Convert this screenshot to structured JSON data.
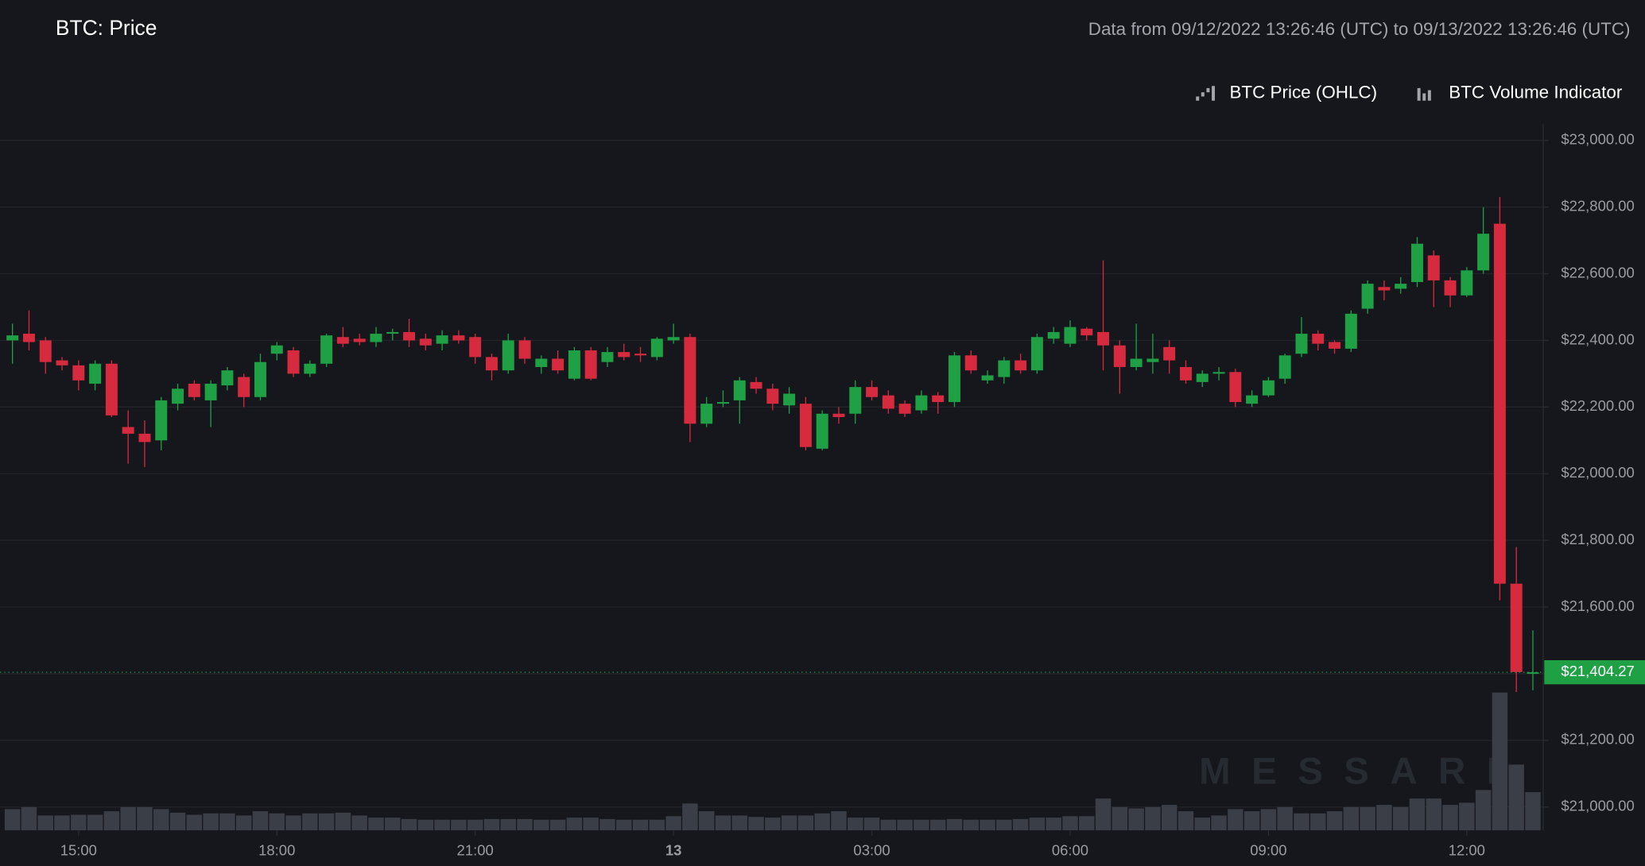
{
  "chart_data": {
    "type": "candlestick",
    "title": "BTC: Price",
    "subtitle": "Data from 09/12/2022 13:26:46 (UTC) to 09/13/2022 13:26:46 (UTC)",
    "watermark": "MESSARI",
    "last_price_label": "$21,404.27",
    "x": [
      "14:00",
      "14:15",
      "14:30",
      "14:45",
      "15:00",
      "15:15",
      "15:30",
      "15:45",
      "16:00",
      "16:15",
      "16:30",
      "16:45",
      "17:00",
      "17:15",
      "17:30",
      "17:45",
      "18:00",
      "18:15",
      "18:30",
      "18:45",
      "19:00",
      "19:15",
      "19:30",
      "19:45",
      "20:00",
      "20:15",
      "20:30",
      "20:45",
      "21:00",
      "21:15",
      "21:30",
      "21:45",
      "22:00",
      "22:15",
      "22:30",
      "22:45",
      "23:00",
      "23:15",
      "23:30",
      "23:45",
      "00:00",
      "00:15",
      "00:30",
      "00:45",
      "01:00",
      "01:15",
      "01:30",
      "01:45",
      "02:00",
      "02:15",
      "02:30",
      "02:45",
      "03:00",
      "03:15",
      "03:30",
      "03:45",
      "04:00",
      "04:15",
      "04:30",
      "04:45",
      "05:00",
      "05:15",
      "05:30",
      "05:45",
      "06:00",
      "06:15",
      "06:30",
      "06:45",
      "07:00",
      "07:15",
      "07:30",
      "07:45",
      "08:00",
      "08:15",
      "08:30",
      "08:45",
      "09:00",
      "09:15",
      "09:30",
      "09:45",
      "10:00",
      "10:15",
      "10:30",
      "10:45",
      "11:00",
      "11:15",
      "11:30",
      "11:45",
      "12:00",
      "12:15",
      "12:30",
      "12:45",
      "13:00"
    ],
    "xticks": [
      "15:00",
      "18:00",
      "21:00",
      {
        "value": "00:00",
        "label": "13"
      },
      "03:00",
      "06:00",
      "09:00",
      "12:00"
    ],
    "ylim": [
      20930,
      23050
    ],
    "yticks": [
      {
        "value": 21000,
        "label": "$21,000.00"
      },
      {
        "value": 21200,
        "label": "$21,200.00"
      },
      {
        "value": 21400,
        "label": "$21,400.00"
      },
      {
        "value": 21600,
        "label": "$21,600.00"
      },
      {
        "value": 21800,
        "label": "$21,800.00"
      },
      {
        "value": 22000,
        "label": "$22,000.00"
      },
      {
        "value": 22200,
        "label": "$22,200.00"
      },
      {
        "value": 22400,
        "label": "$22,400.00"
      },
      {
        "value": 22600,
        "label": "$22,600.00"
      },
      {
        "value": 22800,
        "label": "$22,800.00"
      },
      {
        "value": 23000,
        "label": "$23,000.00"
      }
    ],
    "y2lim": [
      0,
      1000
    ],
    "grid": true,
    "legend": "top-right",
    "series": [
      {
        "name": "BTC Price (OHLC)",
        "up_color": "#1fa045",
        "down_color": "#d62a3f",
        "open": [
          22400,
          22420,
          22400,
          22340,
          22325,
          22270,
          22330,
          22140,
          22120,
          22100,
          22210,
          22270,
          22220,
          22265,
          22290,
          22230,
          22360,
          22370,
          22300,
          22330,
          22410,
          22405,
          22395,
          22420,
          22425,
          22405,
          22390,
          22415,
          22410,
          22350,
          22310,
          22400,
          22320,
          22345,
          22285,
          22370,
          22335,
          22365,
          22360,
          22350,
          22400,
          22410,
          22150,
          22210,
          22220,
          22275,
          22255,
          22205,
          22210,
          22075,
          22180,
          22180,
          22260,
          22235,
          22210,
          22190,
          22235,
          22215,
          22355,
          22280,
          22290,
          22340,
          22310,
          22405,
          22390,
          22435,
          22425,
          22385,
          22320,
          22335,
          22380,
          22320,
          22275,
          22300,
          22305,
          22210,
          22235,
          22285,
          22360,
          22420,
          22395,
          22375,
          22495,
          22560,
          22555,
          22575,
          22655,
          22580,
          22535,
          22610,
          22750,
          21670,
          21400
        ],
        "high": [
          22450,
          22490,
          22410,
          22350,
          22340,
          22340,
          22340,
          22190,
          22160,
          22230,
          22270,
          22280,
          22280,
          22320,
          22300,
          22360,
          22395,
          22380,
          22340,
          22420,
          22440,
          22420,
          22440,
          22435,
          22465,
          22420,
          22430,
          22430,
          22420,
          22360,
          22420,
          22410,
          22355,
          22370,
          22380,
          22380,
          22380,
          22390,
          22380,
          22410,
          22450,
          22420,
          22230,
          22250,
          22290,
          22290,
          22270,
          22260,
          22230,
          22190,
          22200,
          22280,
          22280,
          22250,
          22220,
          22250,
          22245,
          22365,
          22370,
          22310,
          22350,
          22360,
          22420,
          22440,
          22460,
          22440,
          22640,
          22400,
          22450,
          22420,
          22400,
          22340,
          22310,
          22320,
          22315,
          22250,
          22290,
          22360,
          22470,
          22430,
          22400,
          22490,
          22580,
          22580,
          22590,
          22710,
          22670,
          22590,
          22620,
          22800,
          22830,
          21780,
          21530
        ],
        "low": [
          22330,
          22370,
          22300,
          22310,
          22250,
          22250,
          22170,
          22030,
          22020,
          22070,
          22190,
          22220,
          22140,
          22250,
          22200,
          22220,
          22340,
          22290,
          22290,
          22320,
          22380,
          22385,
          22380,
          22400,
          22380,
          22370,
          22370,
          22390,
          22330,
          22280,
          22300,
          22330,
          22300,
          22300,
          22280,
          22280,
          22320,
          22340,
          22335,
          22340,
          22390,
          22095,
          22140,
          22200,
          22150,
          22240,
          22190,
          22180,
          22070,
          22070,
          22150,
          22150,
          22220,
          22180,
          22170,
          22180,
          22180,
          22200,
          22300,
          22270,
          22270,
          22300,
          22300,
          22390,
          22380,
          22400,
          22310,
          22240,
          22310,
          22300,
          22300,
          22270,
          22260,
          22280,
          22200,
          22200,
          22230,
          22270,
          22350,
          22370,
          22360,
          22365,
          22480,
          22520,
          22540,
          22560,
          22500,
          22500,
          22530,
          22600,
          21620,
          21345,
          21350
        ],
        "close": [
          22415,
          22395,
          22335,
          22325,
          22280,
          22330,
          22175,
          22120,
          22095,
          22220,
          22255,
          22230,
          22270,
          22310,
          22230,
          22335,
          22385,
          22300,
          22330,
          22415,
          22390,
          22395,
          22420,
          22425,
          22400,
          22385,
          22415,
          22400,
          22350,
          22310,
          22400,
          22345,
          22345,
          22310,
          22370,
          22285,
          22365,
          22350,
          22355,
          22405,
          22410,
          22150,
          22210,
          22215,
          22280,
          22255,
          22210,
          22240,
          22080,
          22180,
          22170,
          22260,
          22230,
          22195,
          22180,
          22235,
          22215,
          22355,
          22310,
          22295,
          22340,
          22310,
          22410,
          22425,
          22440,
          22415,
          22385,
          22320,
          22345,
          22345,
          22340,
          22280,
          22300,
          22305,
          22215,
          22235,
          22280,
          22355,
          22420,
          22390,
          22375,
          22480,
          22570,
          22550,
          22570,
          22690,
          22580,
          22535,
          22610,
          22720,
          21670,
          21405,
          21404.27
        ]
      },
      {
        "name": "BTC Volume Indicator",
        "color": "#3a3e46",
        "axis": "y2",
        "values": [
          30,
          33,
          21,
          21,
          22,
          22,
          27,
          33,
          33,
          30,
          25,
          22,
          24,
          24,
          21,
          27,
          24,
          21,
          24,
          24,
          25,
          21,
          18,
          18,
          16,
          15,
          15,
          15,
          15,
          16,
          16,
          16,
          15,
          15,
          18,
          18,
          16,
          15,
          15,
          15,
          20,
          38,
          27,
          21,
          21,
          19,
          18,
          21,
          21,
          24,
          27,
          18,
          18,
          15,
          15,
          15,
          15,
          16,
          15,
          15,
          15,
          16,
          18,
          18,
          20,
          20,
          45,
          33,
          31,
          33,
          36,
          27,
          18,
          21,
          30,
          27,
          30,
          33,
          24,
          24,
          27,
          33,
          33,
          36,
          33,
          45,
          45,
          36,
          39,
          57,
          195,
          93,
          54
        ]
      }
    ]
  }
}
